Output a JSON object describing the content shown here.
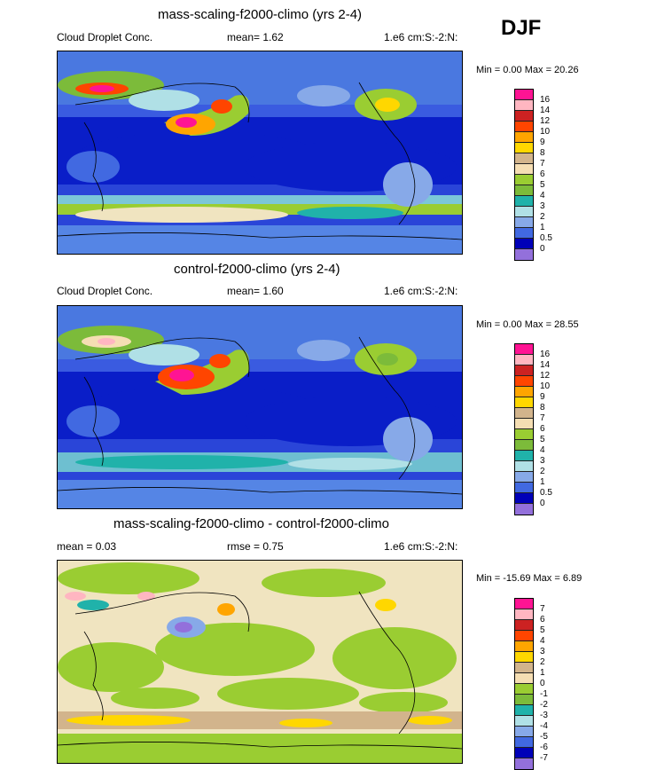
{
  "season": "DJF",
  "panels": [
    {
      "title": "mass-scaling-f2000-climo (yrs 2-4)",
      "left_label": "Cloud Droplet Conc.",
      "center_label": "mean=   1.62",
      "right_label": "1.e6 cm:S:-2:N:",
      "minmax": "Min =   0.00 Max =  20.26",
      "colorbar_ticks": [
        "16",
        "14",
        "12",
        "10",
        "9",
        "8",
        "7",
        "6",
        "5",
        "4",
        "3",
        "2",
        "1",
        "0.5",
        "0"
      ],
      "colorbar_colors": [
        "#ff1493",
        "#ffb6c1",
        "#cc2222",
        "#ff4500",
        "#ffa500",
        "#ffd700",
        "#d2b48c",
        "#f5deb3",
        "#9acd32",
        "#7cbb3a",
        "#20b2aa",
        "#b0e0e6",
        "#87a9e8",
        "#4169e1",
        "#0000b8",
        "#9370db"
      ]
    },
    {
      "title": "control-f2000-climo (yrs 2-4)",
      "left_label": "Cloud Droplet Conc.",
      "center_label": "mean=   1.60",
      "right_label": "1.e6 cm:S:-2:N:",
      "minmax": "Min =   0.00 Max =  28.55",
      "colorbar_ticks": [
        "16",
        "14",
        "12",
        "10",
        "9",
        "8",
        "7",
        "6",
        "5",
        "4",
        "3",
        "2",
        "1",
        "0.5",
        "0"
      ],
      "colorbar_colors": [
        "#ff1493",
        "#ffb6c1",
        "#cc2222",
        "#ff4500",
        "#ffa500",
        "#ffd700",
        "#d2b48c",
        "#f5deb3",
        "#9acd32",
        "#7cbb3a",
        "#20b2aa",
        "#b0e0e6",
        "#87a9e8",
        "#4169e1",
        "#0000b8",
        "#9370db"
      ]
    },
    {
      "title": "mass-scaling-f2000-climo - control-f2000-climo",
      "left_label": "mean =   0.03",
      "center_label": "rmse =   0.75",
      "right_label": "1.e6 cm:S:-2:N:",
      "minmax": "Min = -15.69 Max =   6.89",
      "colorbar_ticks": [
        "7",
        "6",
        "5",
        "4",
        "3",
        "2",
        "1",
        "0",
        "-1",
        "-2",
        "-3",
        "-4",
        "-5",
        "-6",
        "-7"
      ],
      "colorbar_colors": [
        "#ff1493",
        "#ffb6c1",
        "#cc2222",
        "#ff4500",
        "#ffa500",
        "#ffd700",
        "#d2b48c",
        "#f5deb3",
        "#9acd32",
        "#7cbb3a",
        "#20b2aa",
        "#b0e0e6",
        "#87a9e8",
        "#4169e1",
        "#0000b8",
        "#9370db"
      ]
    }
  ]
}
